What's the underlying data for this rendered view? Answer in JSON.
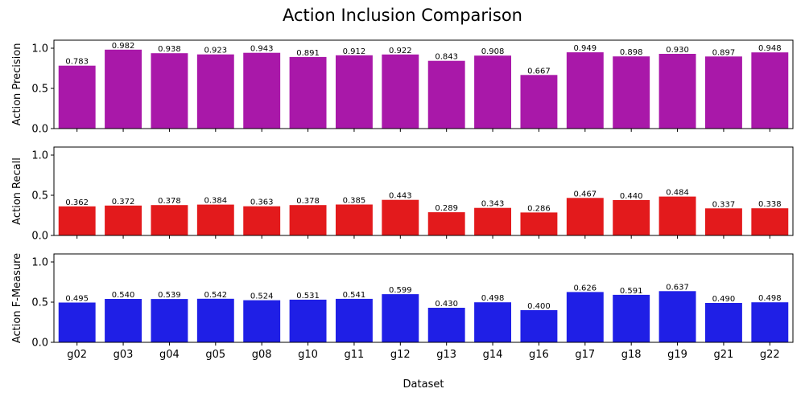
{
  "chart_data": {
    "type": "bar",
    "title": "Action Inclusion Comparison",
    "xlabel": "Dataset",
    "categories": [
      "g02",
      "g03",
      "g04",
      "g05",
      "g08",
      "g10",
      "g11",
      "g12",
      "g13",
      "g14",
      "g16",
      "g17",
      "g18",
      "g19",
      "g21",
      "g22"
    ],
    "ylim": [
      0,
      1.1
    ],
    "yticks": [
      "0.0",
      "0.5",
      "1.0"
    ],
    "grid": false,
    "series": [
      {
        "name": "Action Precision",
        "ylabel": "Action Precision",
        "color": "#a918a9",
        "values": [
          0.783,
          0.982,
          0.938,
          0.923,
          0.943,
          0.891,
          0.912,
          0.922,
          0.843,
          0.908,
          0.667,
          0.949,
          0.898,
          0.93,
          0.897,
          0.948
        ],
        "labels": [
          "0.783",
          "0.982",
          "0.938",
          "0.923",
          "0.943",
          "0.891",
          "0.912",
          "0.922",
          "0.843",
          "0.908",
          "0.667",
          "0.949",
          "0.898",
          "0.930",
          "0.897",
          "0.948"
        ]
      },
      {
        "name": "Action Recall",
        "ylabel": "Action Recall",
        "color": "#e31a1c",
        "values": [
          0.362,
          0.372,
          0.378,
          0.384,
          0.363,
          0.378,
          0.385,
          0.443,
          0.289,
          0.343,
          0.286,
          0.467,
          0.44,
          0.484,
          0.337,
          0.338
        ],
        "labels": [
          "0.362",
          "0.372",
          "0.378",
          "0.384",
          "0.363",
          "0.378",
          "0.385",
          "0.443",
          "0.289",
          "0.343",
          "0.286",
          "0.467",
          "0.440",
          "0.484",
          "0.337",
          "0.338"
        ]
      },
      {
        "name": "Action F-Measure",
        "ylabel": "Action F-Measure",
        "color": "#1f1fe6",
        "values": [
          0.495,
          0.54,
          0.539,
          0.542,
          0.524,
          0.531,
          0.541,
          0.599,
          0.43,
          0.498,
          0.4,
          0.626,
          0.591,
          0.637,
          0.49,
          0.498
        ],
        "labels": [
          "0.495",
          "0.540",
          "0.539",
          "0.542",
          "0.524",
          "0.531",
          "0.541",
          "0.599",
          "0.430",
          "0.498",
          "0.400",
          "0.626",
          "0.591",
          "0.637",
          "0.490",
          "0.498"
        ]
      }
    ]
  }
}
